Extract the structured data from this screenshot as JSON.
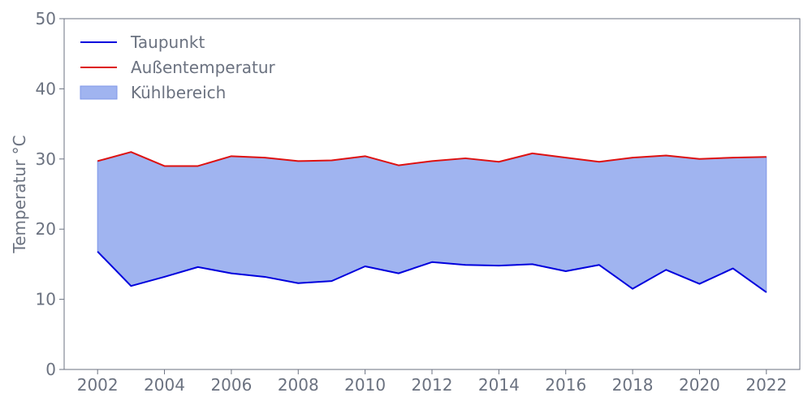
{
  "chart_data": {
    "type": "area",
    "title": "",
    "xlabel": "",
    "ylabel": "Temperatur °C",
    "x": [
      2002,
      2003,
      2004,
      2005,
      2006,
      2007,
      2008,
      2009,
      2010,
      2011,
      2012,
      2013,
      2014,
      2015,
      2016,
      2017,
      2018,
      2019,
      2020,
      2021,
      2022
    ],
    "xticks": [
      "2002",
      "2004",
      "2006",
      "2008",
      "2010",
      "2012",
      "2014",
      "2016",
      "2018",
      "2020",
      "2022"
    ],
    "xlim": [
      2001,
      2023
    ],
    "yticks": [
      "0",
      "10",
      "20",
      "30",
      "40",
      "50"
    ],
    "ylim": [
      0,
      50
    ],
    "grid": false,
    "legend_position": "top-left",
    "series": [
      {
        "name": "Taupunkt",
        "color": "#0000dd",
        "values": [
          16.8,
          11.9,
          13.2,
          14.6,
          13.7,
          13.2,
          12.3,
          12.6,
          14.7,
          13.7,
          15.3,
          14.9,
          14.8,
          15.0,
          14.0,
          14.9,
          11.5,
          14.2,
          12.2,
          14.4,
          11.0
        ]
      },
      {
        "name": "Außentemperatur",
        "color": "#dd1111",
        "values": [
          29.7,
          31.0,
          29.0,
          29.0,
          30.4,
          30.2,
          29.7,
          29.8,
          30.4,
          29.1,
          29.7,
          30.1,
          29.6,
          30.8,
          30.2,
          29.6,
          30.2,
          30.5,
          30.0,
          30.2,
          30.3
        ]
      }
    ],
    "fill": {
      "name": "Kühlbereich",
      "color": "#a0b4f0",
      "edge_color": "#7f97e8",
      "between": [
        "Taupunkt",
        "Außentemperatur"
      ]
    },
    "axis_color": "#6b7280"
  }
}
